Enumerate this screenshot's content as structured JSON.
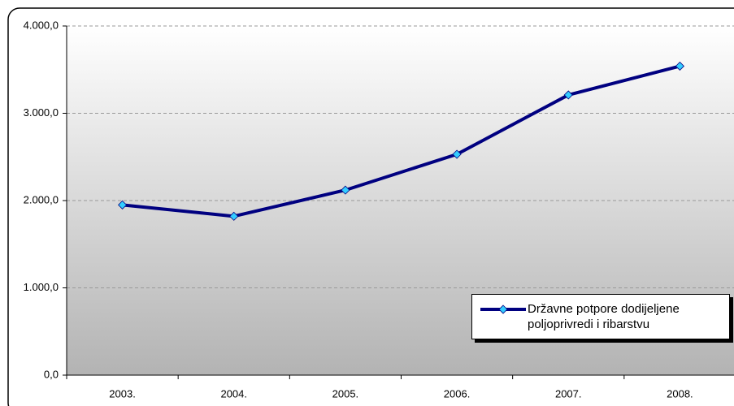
{
  "chart_data": {
    "type": "line",
    "categories": [
      "2003.",
      "2004.",
      "2005.",
      "2006.",
      "2007.",
      "2008."
    ],
    "series": [
      {
        "name": "Državne potpore dodijeljene poljoprivredi i ribarstvu",
        "color": "#000080",
        "marker_color": "#33ccff",
        "values": [
          1950,
          1820,
          2120,
          2530,
          3210,
          3540
        ]
      }
    ],
    "ylim": [
      0,
      4000
    ],
    "yticks": [
      {
        "value": 0,
        "label": "0,0"
      },
      {
        "value": 1000,
        "label": "1.000,0"
      },
      {
        "value": 2000,
        "label": "2.000,0"
      },
      {
        "value": 3000,
        "label": "3.000,0"
      },
      {
        "value": 4000,
        "label": "4.000,0"
      }
    ],
    "grid": true,
    "legend": "lower right"
  }
}
